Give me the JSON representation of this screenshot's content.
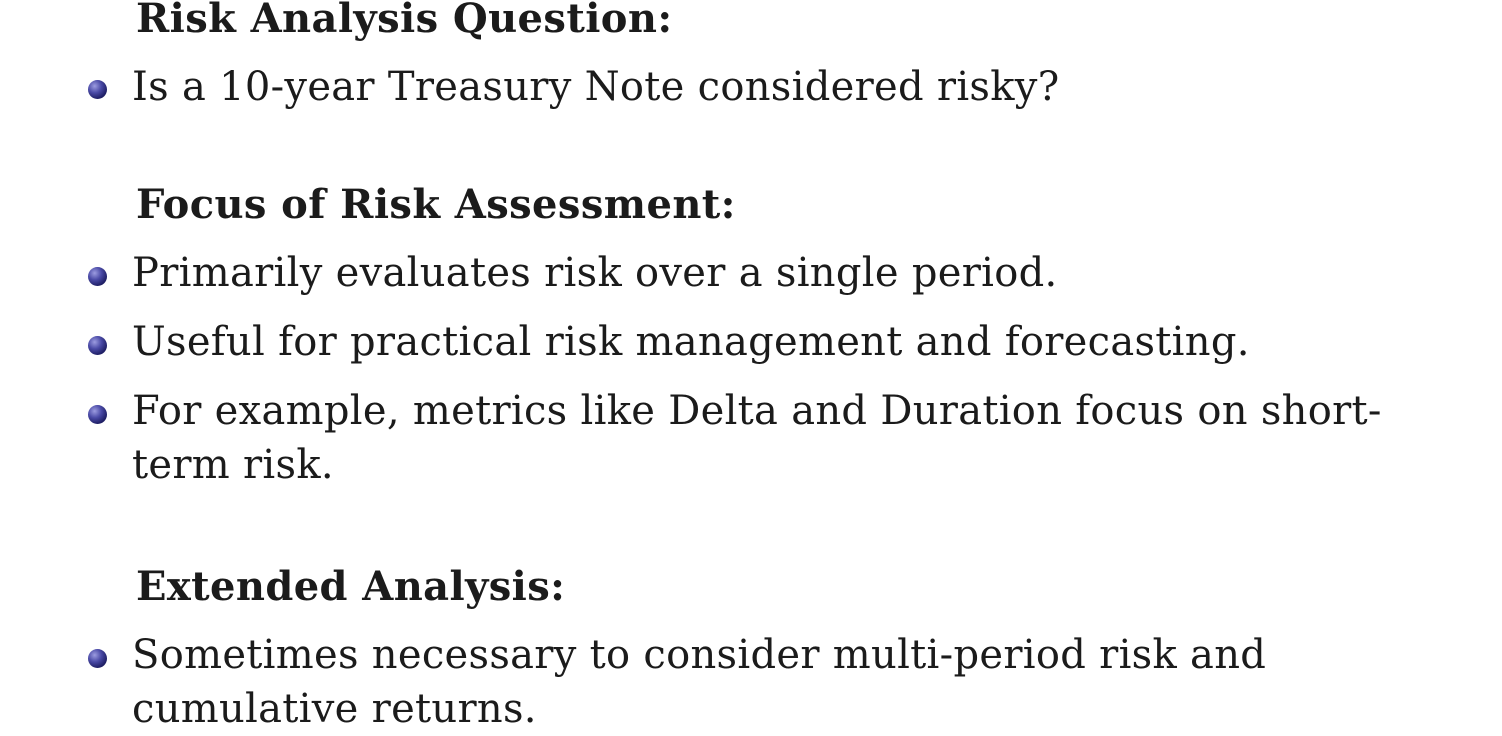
{
  "sections": [
    {
      "heading": "Risk Analysis Question:",
      "bullets": [
        "Is a 10-year Treasury Note considered risky?"
      ]
    },
    {
      "heading": "Focus of Risk Assessment:",
      "bullets": [
        "Primarily evaluates risk over a single period.",
        "Useful for practical risk management and forecasting.",
        "For example, metrics like Delta and Duration focus on short-term risk."
      ]
    },
    {
      "heading": "Extended Analysis:",
      "bullets": [
        "Sometimes necessary to consider multi-period risk and cumulative returns."
      ]
    }
  ]
}
